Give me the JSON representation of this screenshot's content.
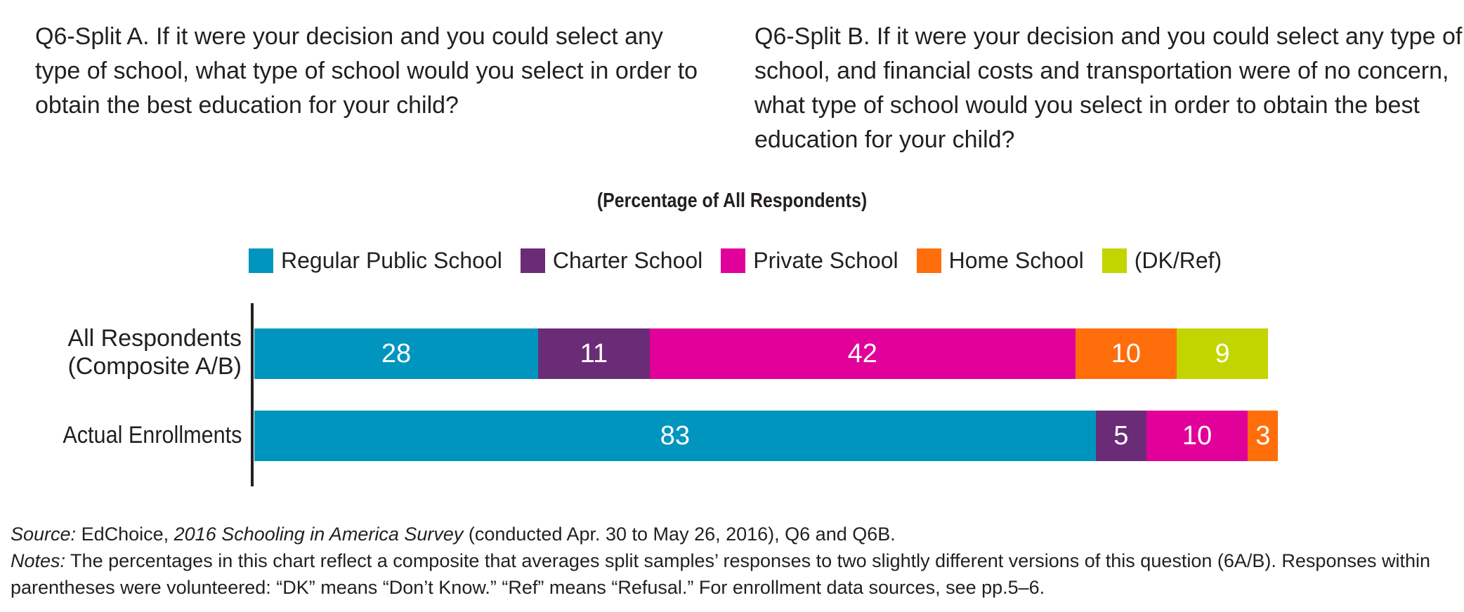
{
  "questions": {
    "split_a": "Q6-Split A. If it were your decision and you could select any type of school, what type of school would you select in order to obtain the best education for your child?",
    "split_b": "Q6-Split B. If it were your decision and you could select any type of school, and financial costs and transportation were of no concern, what type of school would you select in order to obtain the best education for your child?"
  },
  "chart_data": {
    "type": "bar",
    "orientation": "horizontal",
    "stacked": true,
    "title": "(Percentage of All Respondents)",
    "categories": [
      "All Respondents\n(Composite A/B)",
      "Actual Enrollments"
    ],
    "series": [
      {
        "name": "Regular Public School",
        "color": "#0095bf",
        "values": [
          28,
          83
        ]
      },
      {
        "name": "Charter School",
        "color": "#6b2c77",
        "values": [
          11,
          5
        ]
      },
      {
        "name": "Private School",
        "color": "#e2009a",
        "values": [
          42,
          10
        ]
      },
      {
        "name": "Home School",
        "color": "#ff6e0b",
        "values": [
          10,
          3
        ]
      },
      {
        "name": "(DK/Ref)",
        "color": "#c3d500",
        "values": [
          9,
          null
        ]
      }
    ],
    "xlim": [
      0,
      100
    ],
    "legend_position": "top",
    "grid": false
  },
  "footer": {
    "source_label": "Source:",
    "source_org": " EdChoice, ",
    "source_title": "2016 Schooling in America Survey",
    "source_rest": " (conducted Apr. 30 to May 26, 2016), Q6 and Q6B.",
    "notes_label": "Notes:",
    "notes_text": " The percentages in this chart reflect a composite that averages split samples’ responses to two slightly different versions of this question (6A/B). Responses within parentheses were volunteered: “DK” means “Don’t Know.” “Ref” means “Refusal.” For enrollment data sources, see pp.5–6."
  }
}
